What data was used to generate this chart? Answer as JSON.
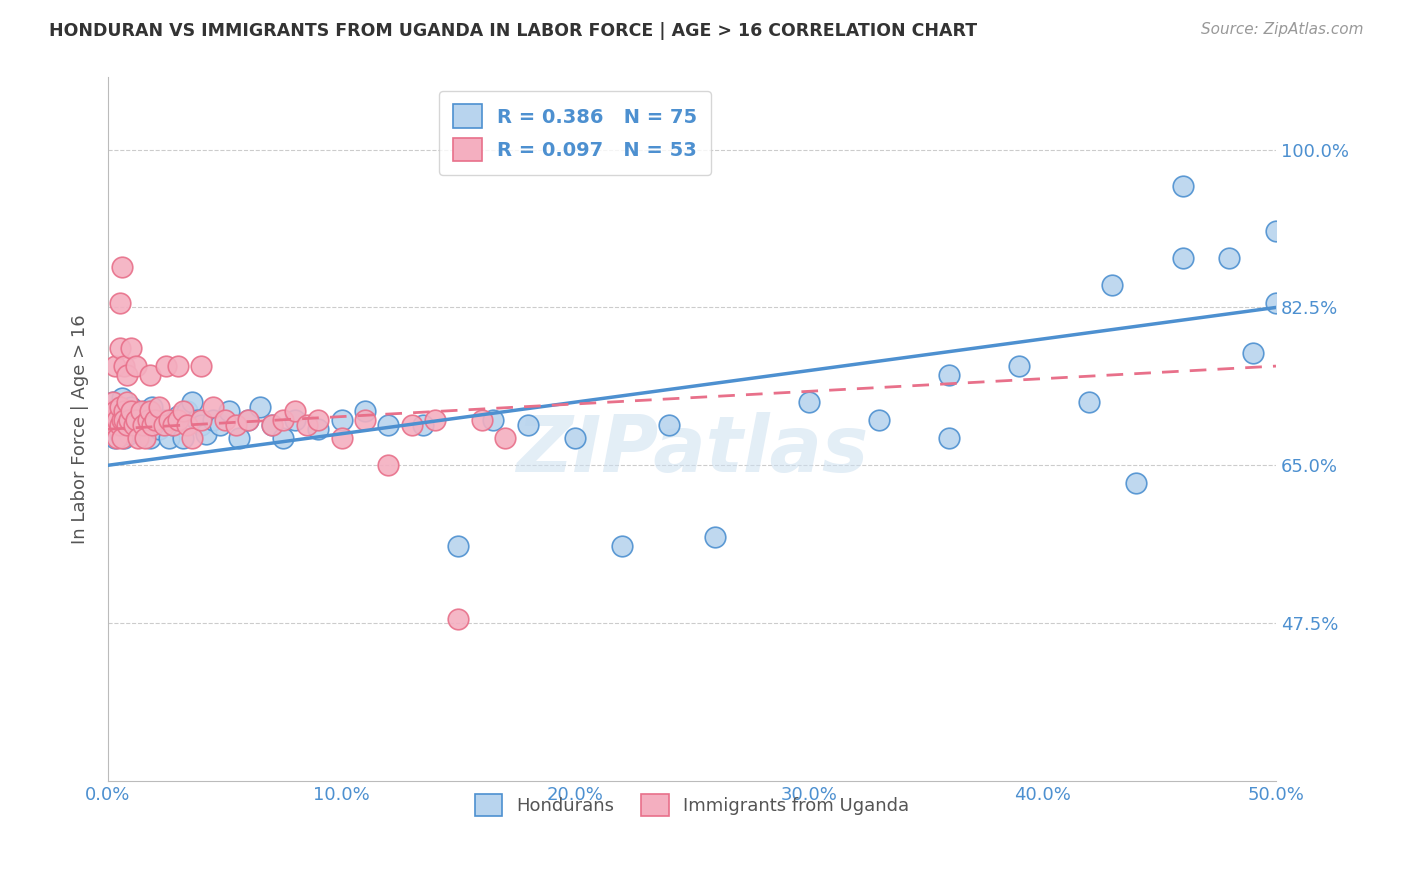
{
  "title": "HONDURAN VS IMMIGRANTS FROM UGANDA IN LABOR FORCE | AGE > 16 CORRELATION CHART",
  "source": "Source: ZipAtlas.com",
  "ylabel_label": "In Labor Force | Age > 16",
  "legend_entries": [
    {
      "label": "R = 0.386   N = 75"
    },
    {
      "label": "R = 0.097   N = 53"
    }
  ],
  "legend_bottom": [
    "Hondurans",
    "Immigrants from Uganda"
  ],
  "watermark": "ZIPatlas",
  "blue_color": "#4d90d0",
  "pink_color": "#e8708a",
  "blue_light": "#b8d4ee",
  "pink_light": "#f4afc0",
  "xmin": 0.0,
  "xmax": 0.5,
  "ymin": 0.3,
  "ymax": 1.08,
  "ytick_positions": [
    0.475,
    0.65,
    0.825,
    1.0
  ],
  "blue_scatter_x": [
    0.001,
    0.002,
    0.002,
    0.003,
    0.003,
    0.004,
    0.004,
    0.005,
    0.005,
    0.006,
    0.006,
    0.007,
    0.007,
    0.008,
    0.008,
    0.009,
    0.009,
    0.01,
    0.01,
    0.011,
    0.012,
    0.013,
    0.014,
    0.015,
    0.016,
    0.017,
    0.018,
    0.019,
    0.02,
    0.022,
    0.024,
    0.026,
    0.028,
    0.03,
    0.032,
    0.034,
    0.036,
    0.038,
    0.04,
    0.042,
    0.045,
    0.048,
    0.052,
    0.056,
    0.06,
    0.065,
    0.07,
    0.075,
    0.08,
    0.09,
    0.1,
    0.11,
    0.12,
    0.135,
    0.15,
    0.165,
    0.18,
    0.2,
    0.22,
    0.24,
    0.26,
    0.3,
    0.33,
    0.36,
    0.39,
    0.42,
    0.44,
    0.46,
    0.46,
    0.48,
    0.49,
    0.5,
    0.5,
    0.43,
    0.36
  ],
  "blue_scatter_y": [
    0.7,
    0.69,
    0.72,
    0.68,
    0.71,
    0.695,
    0.705,
    0.715,
    0.685,
    0.7,
    0.725,
    0.68,
    0.695,
    0.71,
    0.69,
    0.7,
    0.685,
    0.715,
    0.695,
    0.7,
    0.705,
    0.695,
    0.685,
    0.7,
    0.71,
    0.695,
    0.68,
    0.715,
    0.7,
    0.69,
    0.7,
    0.68,
    0.695,
    0.705,
    0.68,
    0.71,
    0.72,
    0.7,
    0.695,
    0.685,
    0.7,
    0.695,
    0.71,
    0.68,
    0.7,
    0.715,
    0.695,
    0.68,
    0.7,
    0.69,
    0.7,
    0.71,
    0.695,
    0.695,
    0.56,
    0.7,
    0.695,
    0.68,
    0.56,
    0.695,
    0.57,
    0.72,
    0.7,
    0.68,
    0.76,
    0.72,
    0.63,
    0.88,
    0.96,
    0.88,
    0.775,
    0.83,
    0.91,
    0.85,
    0.75
  ],
  "pink_scatter_x": [
    0.001,
    0.002,
    0.002,
    0.003,
    0.003,
    0.004,
    0.004,
    0.005,
    0.005,
    0.006,
    0.006,
    0.007,
    0.007,
    0.008,
    0.008,
    0.009,
    0.01,
    0.011,
    0.012,
    0.013,
    0.014,
    0.015,
    0.016,
    0.017,
    0.018,
    0.019,
    0.02,
    0.022,
    0.024,
    0.026,
    0.028,
    0.03,
    0.032,
    0.034,
    0.036,
    0.04,
    0.045,
    0.05,
    0.055,
    0.06,
    0.07,
    0.075,
    0.08,
    0.085,
    0.09,
    0.1,
    0.11,
    0.12,
    0.13,
    0.14,
    0.15,
    0.16,
    0.17
  ],
  "pink_scatter_y": [
    0.71,
    0.7,
    0.72,
    0.695,
    0.71,
    0.7,
    0.68,
    0.715,
    0.695,
    0.7,
    0.68,
    0.71,
    0.7,
    0.72,
    0.695,
    0.7,
    0.71,
    0.695,
    0.7,
    0.68,
    0.71,
    0.695,
    0.68,
    0.7,
    0.71,
    0.695,
    0.7,
    0.715,
    0.695,
    0.7,
    0.695,
    0.7,
    0.71,
    0.695,
    0.68,
    0.7,
    0.715,
    0.7,
    0.695,
    0.7,
    0.695,
    0.7,
    0.71,
    0.695,
    0.7,
    0.68,
    0.7,
    0.65,
    0.695,
    0.7,
    0.48,
    0.7,
    0.68
  ],
  "pink_extra_x": [
    0.003,
    0.005,
    0.005,
    0.006,
    0.007,
    0.008,
    0.01,
    0.012,
    0.018,
    0.025,
    0.03,
    0.04
  ],
  "pink_extra_y": [
    0.76,
    0.78,
    0.83,
    0.87,
    0.76,
    0.75,
    0.78,
    0.76,
    0.75,
    0.76,
    0.76,
    0.76
  ],
  "blue_line": {
    "x0": 0.0,
    "x1": 0.5,
    "y0": 0.65,
    "y1": 0.825
  },
  "pink_line": {
    "x0": 0.0,
    "x1": 0.5,
    "y0": 0.69,
    "y1": 0.76
  },
  "grid_color": "#cccccc",
  "title_color": "#333333",
  "axis_color": "#4d90d0",
  "ylabel_color": "#555555"
}
